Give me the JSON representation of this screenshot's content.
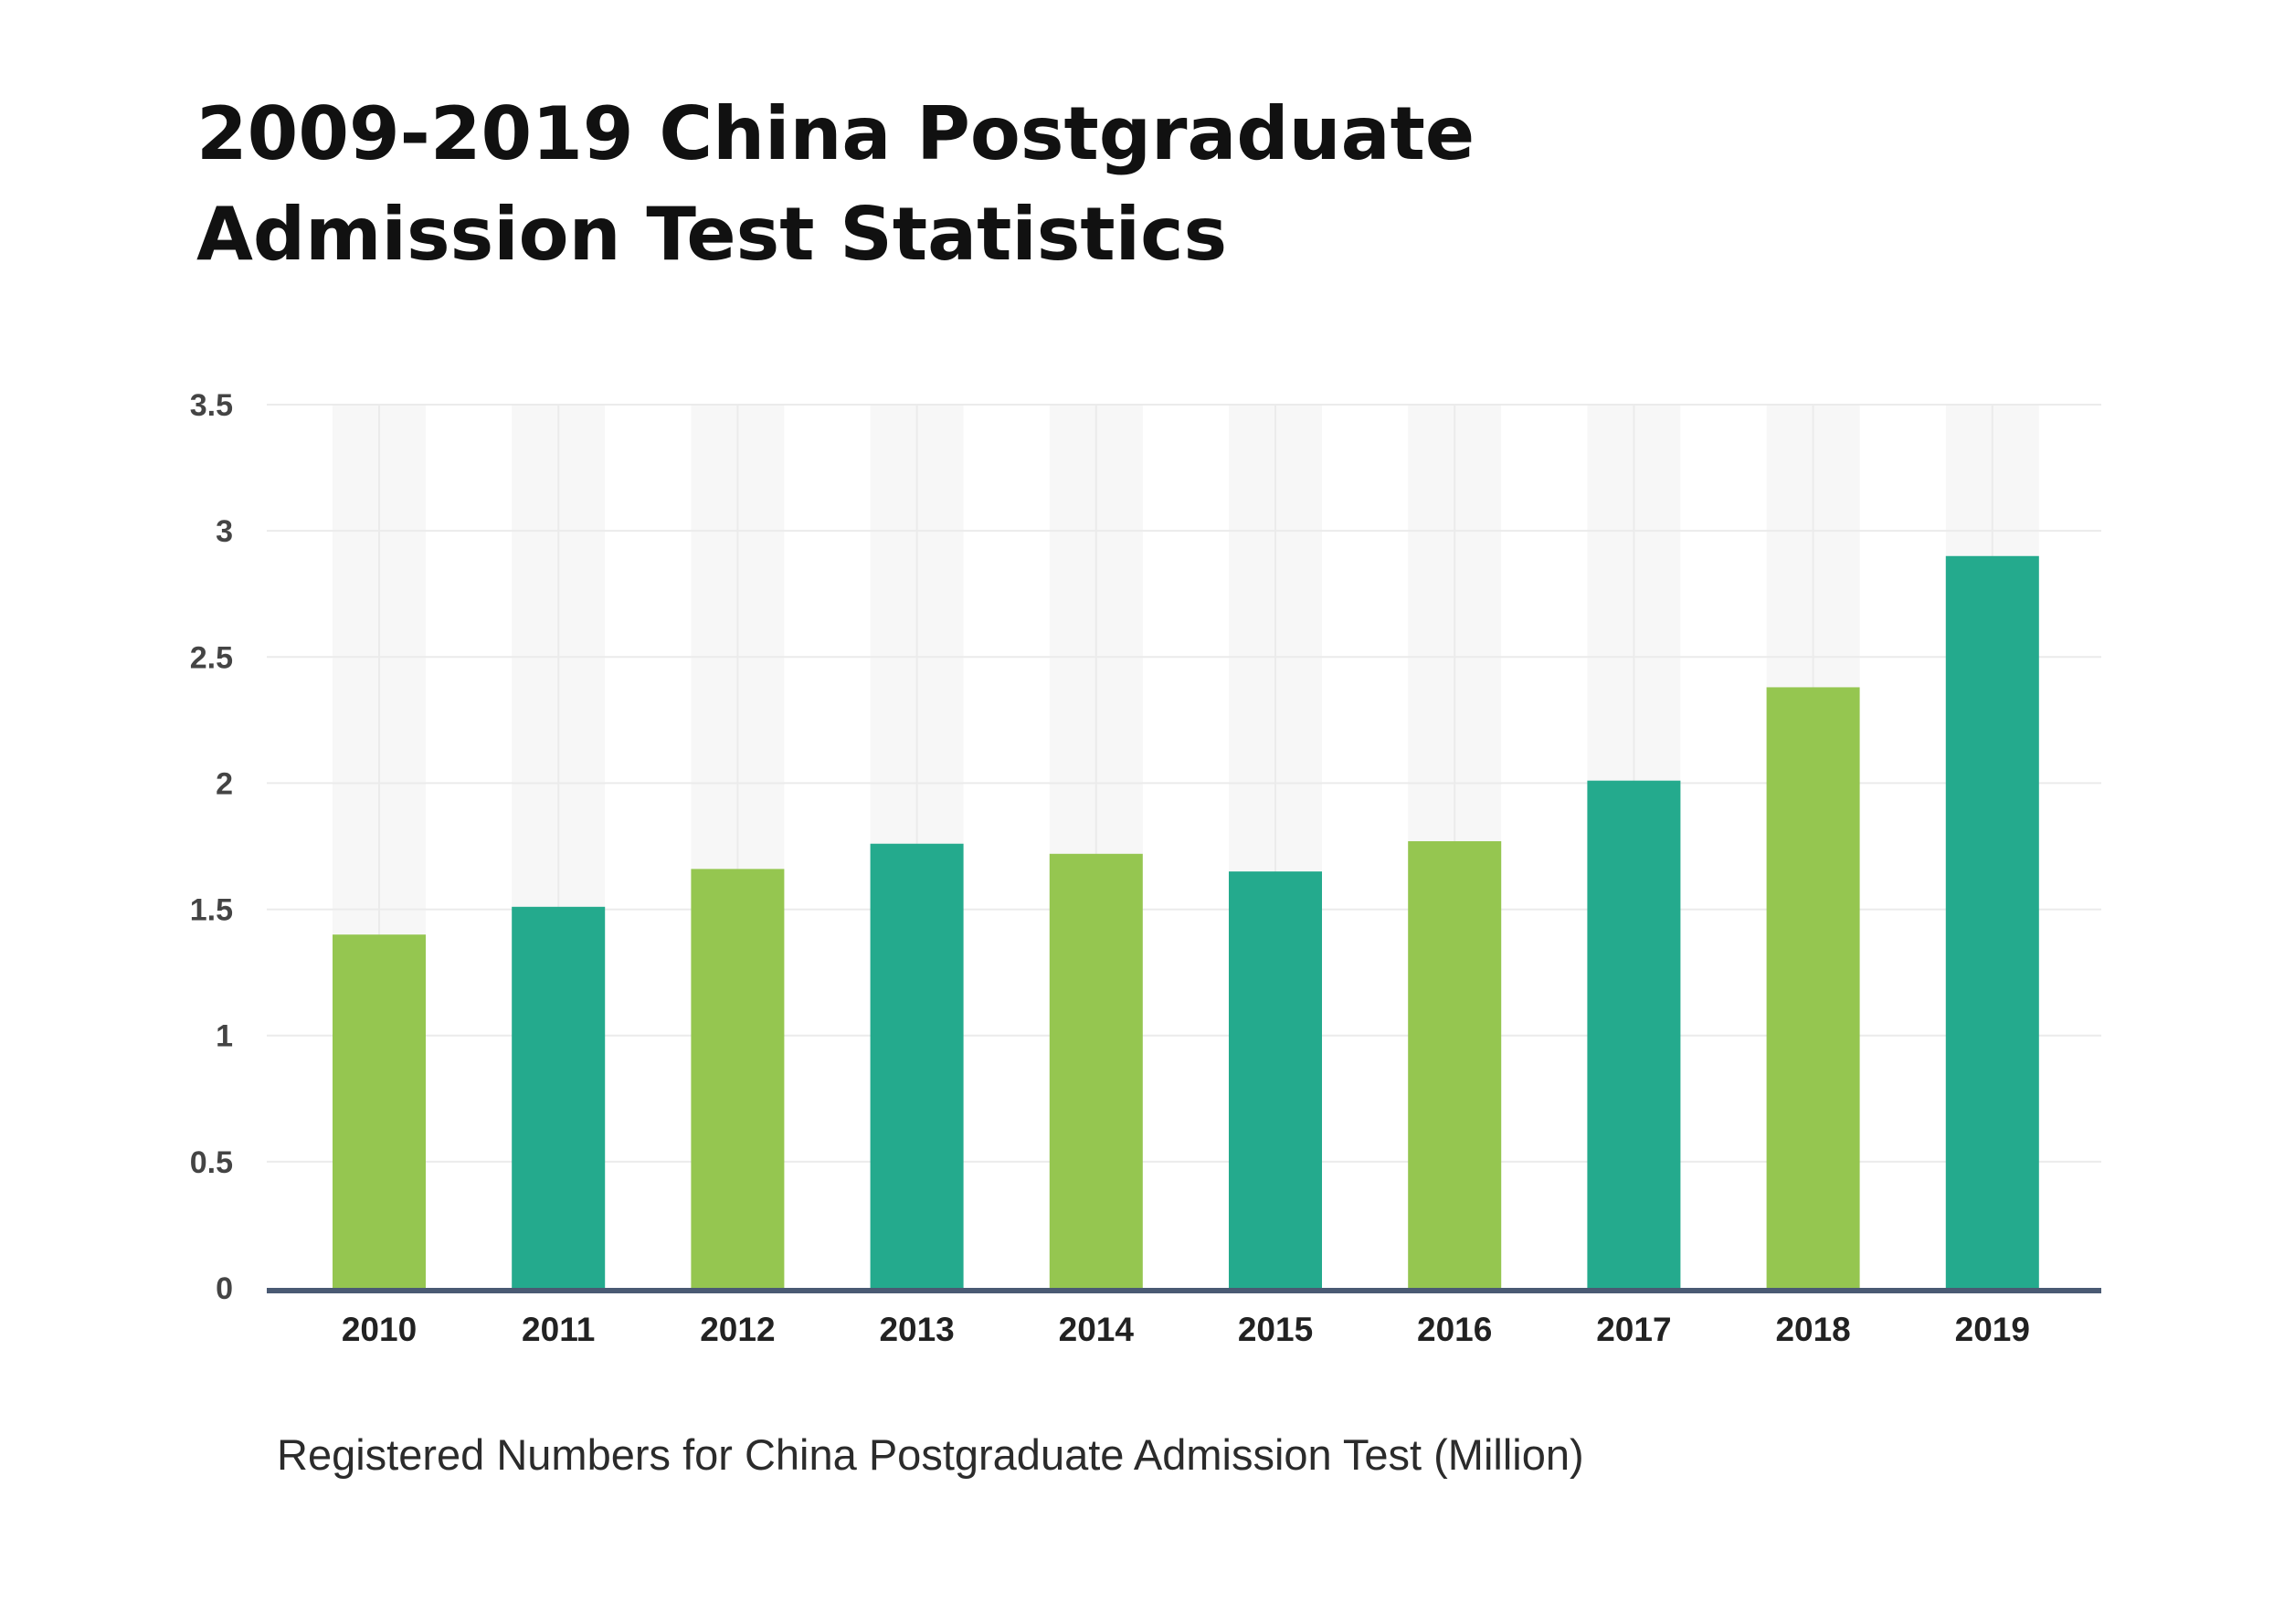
{
  "title_lines": [
    "2009-2019 China Postgraduate",
    "Admission Test Statistics"
  ],
  "colors": {
    "light_green": "#95c650",
    "teal": "#24aa8d",
    "axis": "#4a5a73",
    "bg_column": "#f7f7f7",
    "grid": "#ebebeb"
  },
  "chart_data": {
    "type": "bar",
    "title": "2009-2019 China Postgraduate Admission Test Statistics",
    "xlabel": "Registered Numbers for China Postgraduate Admission Test (Million)",
    "ylabel": "",
    "categories": [
      "2010",
      "2011",
      "2012",
      "2013",
      "2014",
      "2015",
      "2016",
      "2017",
      "2018",
      "2019"
    ],
    "values": [
      1.4,
      1.51,
      1.66,
      1.76,
      1.72,
      1.65,
      1.77,
      2.01,
      2.38,
      2.9
    ],
    "bar_colors": [
      "#95c650",
      "#24aa8d",
      "#95c650",
      "#24aa8d",
      "#95c650",
      "#24aa8d",
      "#95c650",
      "#24aa8d",
      "#95c650",
      "#24aa8d"
    ],
    "ylim": [
      0,
      3.5
    ],
    "yticks": [
      "0",
      "0.5",
      "1",
      "1.5",
      "2",
      "2.5",
      "3",
      "3.5"
    ],
    "grid": true,
    "legend": "none"
  }
}
